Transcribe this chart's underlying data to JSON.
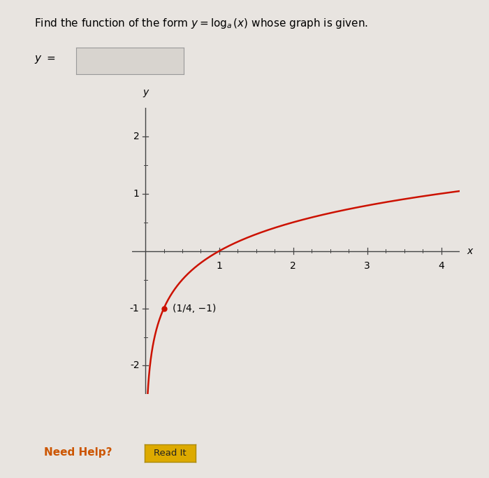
{
  "title_math": "Find the function of the form $y = \\log_a(x)$ whose graph is given.",
  "background_color": "#e8e4e0",
  "plot_bg_color": "#e8e4e0",
  "curve_color": "#cc1100",
  "curve_linewidth": 1.8,
  "point_color": "#cc1100",
  "point_size": 5,
  "point_x": 0.25,
  "point_y": -1,
  "point_label": "(1/4, −1)",
  "log_base": 4,
  "x_plot_min": 0.0005,
  "x_plot_max": 4.25,
  "y_display_min": -2.5,
  "y_display_max": 2.5,
  "xlabel": "x",
  "ylabel": "y",
  "xticks": [
    1,
    2,
    3,
    4
  ],
  "yticks": [
    -2,
    -1,
    1,
    2
  ],
  "need_help_color": "#cc5500",
  "read_it_bg": "#ddaa00",
  "read_it_border": "#aa8800",
  "axis_color": "#444444",
  "tick_color": "#444444",
  "title_fontsize": 11,
  "label_fontsize": 10,
  "tick_fontsize": 10
}
